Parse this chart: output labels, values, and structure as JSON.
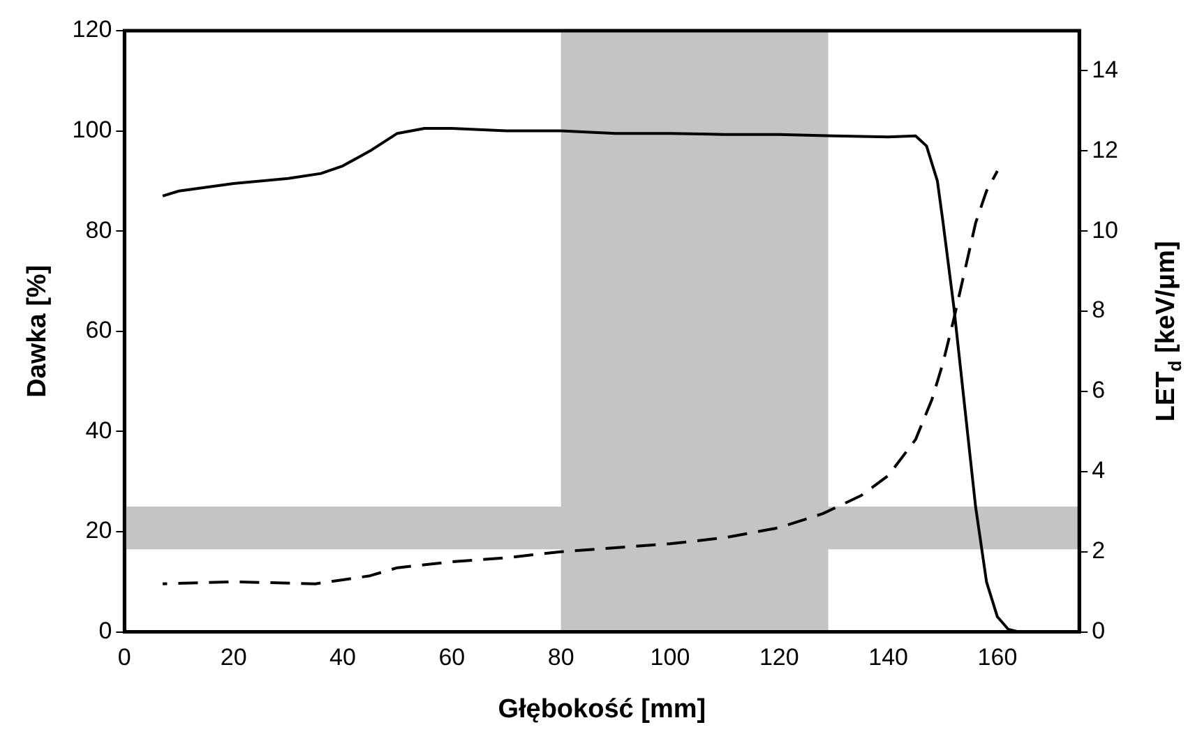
{
  "chart_data": {
    "type": "line",
    "xlabel": "Głębokość [mm]",
    "ylabel": "Dawka [%]",
    "y2label": "LET$_{d}$ [keV/μm]",
    "xlim": [
      0,
      175
    ],
    "xticks": [
      0,
      20,
      40,
      60,
      80,
      100,
      120,
      140,
      160
    ],
    "ylim": [
      0,
      120
    ],
    "yticks": [
      0,
      20,
      40,
      60,
      80,
      100,
      120
    ],
    "y2lim": [
      0,
      15
    ],
    "y2ticks": [
      0,
      2,
      4,
      6,
      8,
      10,
      12,
      14
    ],
    "grid": false,
    "legend": false,
    "marker": "none",
    "bands": [
      {
        "axis": "y",
        "from": 16.5,
        "to": 25,
        "color": "#c4c4c4"
      },
      {
        "axis": "x",
        "from": 80,
        "to": 129,
        "color": "#c4c4c4"
      }
    ],
    "series": [
      {
        "color": "#000000",
        "line_style": "solid",
        "x": [
          7,
          10,
          20,
          30,
          36,
          40,
          45,
          50,
          55,
          60,
          70,
          80,
          90,
          100,
          110,
          120,
          130,
          140,
          145,
          147,
          149,
          150,
          152,
          154,
          156,
          158,
          160,
          162,
          164,
          166
        ],
        "values": [
          87,
          88,
          89.5,
          90.5,
          91.5,
          93,
          96,
          99.5,
          100.5,
          100.5,
          100,
          100,
          99.5,
          99.5,
          99.3,
          99.3,
          99,
          98.8,
          99,
          97,
          90,
          82,
          65,
          45,
          25,
          10,
          3,
          0.5,
          0,
          0
        ]
      },
      {
        "color": "#000000",
        "line_style": "dashed",
        "axis": "y2",
        "x": [
          7,
          20,
          35,
          40,
          45,
          50,
          60,
          70,
          80,
          90,
          100,
          110,
          120,
          128,
          135,
          140,
          145,
          148,
          150,
          152,
          154,
          156,
          158,
          160
        ],
        "values": [
          1.2,
          1.25,
          1.2,
          1.3,
          1.4,
          1.6,
          1.75,
          1.85,
          2.0,
          2.1,
          2.2,
          2.35,
          2.6,
          2.95,
          3.4,
          3.9,
          4.8,
          5.8,
          6.7,
          7.8,
          9.0,
          10.2,
          11.0,
          11.5
        ]
      }
    ]
  }
}
